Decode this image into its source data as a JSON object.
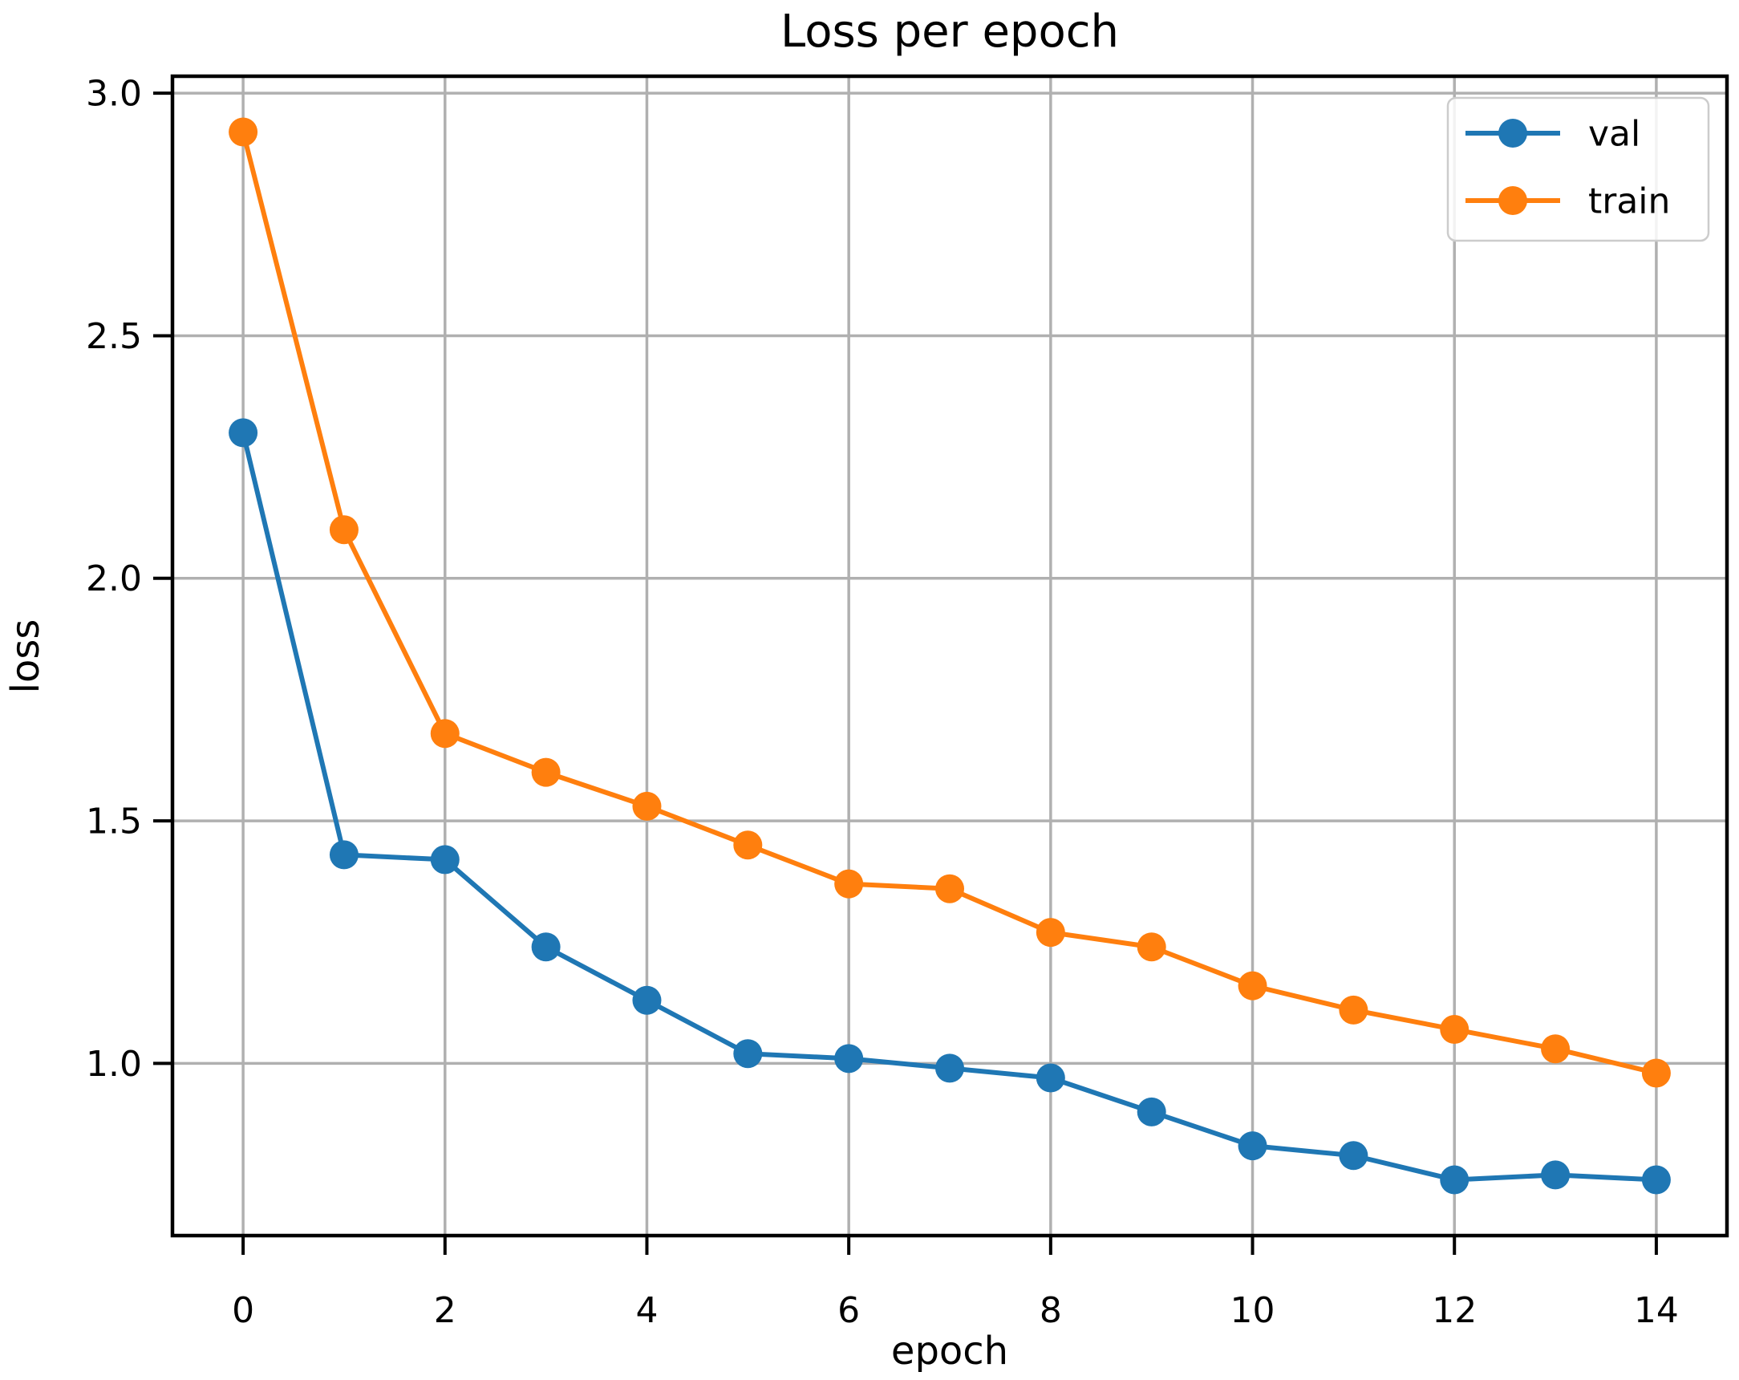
{
  "figure": {
    "title": "Loss per epoch",
    "xlabel": "epoch",
    "ylabel": "loss"
  },
  "chart_data": {
    "type": "line",
    "title": "Loss per epoch",
    "xlabel": "epoch",
    "ylabel": "loss",
    "x": [
      0,
      1,
      2,
      3,
      4,
      5,
      6,
      7,
      8,
      9,
      10,
      11,
      12,
      13,
      14
    ],
    "series": [
      {
        "name": "val",
        "color": "#1f77b4",
        "values": [
          2.3,
          1.43,
          1.42,
          1.24,
          1.13,
          1.02,
          1.01,
          0.99,
          0.97,
          0.9,
          0.83,
          0.81,
          0.76,
          0.77,
          0.76
        ]
      },
      {
        "name": "train",
        "color": "#ff7f0e",
        "values": [
          2.92,
          2.1,
          1.68,
          1.6,
          1.53,
          1.45,
          1.37,
          1.36,
          1.27,
          1.24,
          1.16,
          1.11,
          1.07,
          1.03,
          0.98
        ]
      }
    ],
    "xticks": [
      0,
      2,
      4,
      6,
      8,
      10,
      12,
      14
    ],
    "yticks": [
      "1.0",
      "1.5",
      "2.0",
      "2.5",
      "3.0"
    ],
    "xlim": [
      -0.7,
      14.7
    ],
    "ylim": [
      0.645,
      3.035
    ],
    "grid": true,
    "grid_color": "#b0b0b0",
    "spine_color": "#000000",
    "background": "#ffffff",
    "legend": {
      "position": "upper right",
      "entries": [
        "val",
        "train"
      ],
      "border_color": "#cccccc",
      "fill": "#ffffff"
    },
    "marker": "circle",
    "line_width": 6,
    "marker_radius": 18
  }
}
